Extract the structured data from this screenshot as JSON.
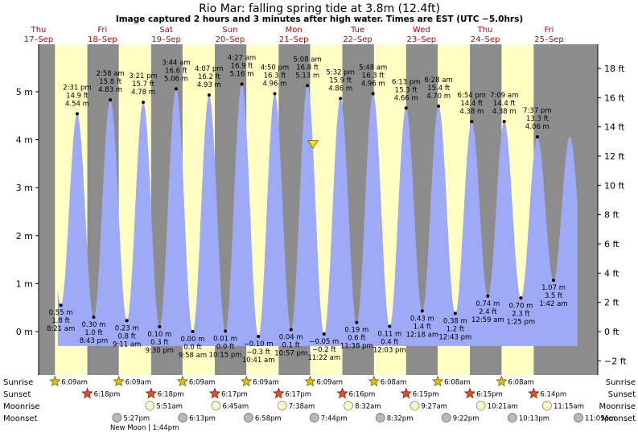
{
  "chart_data": {
    "type": "area",
    "title": "Rio Mar: falling  spring tide at 3.8m (12.4ft)",
    "subtitle": "Image captured 2 hours and 3 minutes after high water. Times are EST (UTC −5.0hrs)",
    "days": [
      {
        "name": "Thu",
        "date": "17–Sep"
      },
      {
        "name": "Fri",
        "date": "18–Sep"
      },
      {
        "name": "Sat",
        "date": "19–Sep"
      },
      {
        "name": "Sun",
        "date": "20–Sep"
      },
      {
        "name": "Mon",
        "date": "21–Sep"
      },
      {
        "name": "Tue",
        "date": "22–Sep"
      },
      {
        "name": "Wed",
        "date": "23–Sep"
      },
      {
        "name": "Thu",
        "date": "24–Sep"
      },
      {
        "name": "Fri",
        "date": "25–Sep"
      }
    ],
    "y_left": {
      "ticks": [
        0,
        1,
        2,
        3,
        4,
        5
      ],
      "labels": [
        "0 m",
        "1 m",
        "2 m",
        "3 m",
        "4 m",
        "5 m"
      ],
      "ylim": [
        -0.95,
        5.85
      ]
    },
    "y_right": {
      "ticks": [
        -2,
        0,
        2,
        4,
        6,
        8,
        10,
        12,
        14,
        16,
        18
      ],
      "labels": [
        "−2 ft",
        "0 ft",
        "2 ft",
        "4 ft",
        "6 ft",
        "8 ft",
        "10 ft",
        "12 ft",
        "14 ft",
        "16 ft",
        "18 ft"
      ]
    },
    "x_range_days": [
      0,
      9
    ],
    "tides": [
      {
        "time": "8:21 am",
        "t": 0.348,
        "m": 0.55,
        "m_label": "0.55 m",
        "ft_label": "1.8 ft",
        "kind": "low"
      },
      {
        "time": "2:31 pm",
        "t": 0.605,
        "m": 4.54,
        "m_label": "4.54 m",
        "ft_label": "14.9 ft",
        "kind": "high"
      },
      {
        "time": "8:43 pm",
        "t": 0.863,
        "m": 0.3,
        "m_label": "0.30 m",
        "ft_label": "1.0 ft",
        "kind": "low"
      },
      {
        "time": "2:58 am",
        "t": 1.124,
        "m": 4.83,
        "m_label": "4.83 m",
        "ft_label": "15.8 ft",
        "kind": "high"
      },
      {
        "time": "9:11 am",
        "t": 1.383,
        "m": 0.23,
        "m_label": "0.23 m",
        "ft_label": "0.8 ft",
        "kind": "low"
      },
      {
        "time": "3:21 pm",
        "t": 1.64,
        "m": 4.78,
        "m_label": "4.78 m",
        "ft_label": "15.7 ft",
        "kind": "high"
      },
      {
        "time": "9:30 pm",
        "t": 1.896,
        "m": 0.1,
        "m_label": "0.10 m",
        "ft_label": "0.3 ft",
        "kind": "low"
      },
      {
        "time": "3:44 am",
        "t": 2.156,
        "m": 5.06,
        "m_label": "5.06 m",
        "ft_label": "16.6 ft",
        "kind": "high"
      },
      {
        "time": "9:58 am",
        "t": 2.415,
        "m": 0.0,
        "m_label": "0.00 m",
        "ft_label": "0.0 ft",
        "kind": "low"
      },
      {
        "time": "4:07 pm",
        "t": 2.672,
        "m": 4.93,
        "m_label": "4.93 m",
        "ft_label": "16.2 ft",
        "kind": "high"
      },
      {
        "time": "10:15 pm",
        "t": 2.927,
        "m": 0.01,
        "m_label": "0.01 m",
        "ft_label": "0.0 ft",
        "kind": "low"
      },
      {
        "time": "4:27 am",
        "t": 3.185,
        "m": 5.16,
        "m_label": "5.16 m",
        "ft_label": "16.9 ft",
        "kind": "high"
      },
      {
        "time": "10:41 am",
        "t": 3.445,
        "m": -0.1,
        "m_label": "−0.10 m",
        "ft_label": "−0.3 ft",
        "kind": "low"
      },
      {
        "time": "4:50 pm",
        "t": 3.701,
        "m": 4.96,
        "m_label": "4.96 m",
        "ft_label": "16.3 ft",
        "kind": "high"
      },
      {
        "time": "10:57 pm",
        "t": 3.956,
        "m": 0.04,
        "m_label": "0.04 m",
        "ft_label": "0.1 ft",
        "kind": "low"
      },
      {
        "time": "5:08 am",
        "t": 4.214,
        "m": 5.13,
        "m_label": "5.13 m",
        "ft_label": "16.8 ft",
        "kind": "high"
      },
      {
        "time": "11:22 am",
        "t": 4.474,
        "m": -0.05,
        "m_label": "−0.05 m",
        "ft_label": "−0.2 ft",
        "kind": "low"
      },
      {
        "time": "5:32 pm",
        "t": 4.731,
        "m": 4.86,
        "m_label": "4.86 m",
        "ft_label": "15.9 ft",
        "kind": "high"
      },
      {
        "time": "11:38 pm",
        "t": 4.985,
        "m": 0.19,
        "m_label": "0.19 m",
        "ft_label": "0.6 ft",
        "kind": "low"
      },
      {
        "time": "5:48 am",
        "t": 5.242,
        "m": 4.96,
        "m_label": "4.96 m",
        "ft_label": "16.3 ft",
        "kind": "high"
      },
      {
        "time": "12:03 pm",
        "t": 5.502,
        "m": 0.11,
        "m_label": "0.11 m",
        "ft_label": "0.4 ft",
        "kind": "low"
      },
      {
        "time": "6:13 pm",
        "t": 5.759,
        "m": 4.66,
        "m_label": "4.66 m",
        "ft_label": "15.3 ft",
        "kind": "high"
      },
      {
        "time": "12:18 am",
        "t": 6.013,
        "m": 0.43,
        "m_label": "0.43 m",
        "ft_label": "1.4 ft",
        "kind": "low"
      },
      {
        "time": "6:28 am",
        "t": 6.269,
        "m": 4.7,
        "m_label": "4.70 m",
        "ft_label": "15.4 ft",
        "kind": "high"
      },
      {
        "time": "12:43 pm",
        "t": 6.53,
        "m": 0.38,
        "m_label": "0.38 m",
        "ft_label": "1.2 ft",
        "kind": "low"
      },
      {
        "time": "6:54 pm",
        "t": 6.788,
        "m": 4.38,
        "m_label": "4.38 m",
        "ft_label": "14.4 ft",
        "kind": "high"
      },
      {
        "time": "12:59 am",
        "t": 7.041,
        "m": 0.74,
        "m_label": "0.74 m",
        "ft_label": "2.4 ft",
        "kind": "low"
      },
      {
        "time": "7:09 am",
        "t": 7.298,
        "m": 4.38,
        "m_label": "4.38 m",
        "ft_label": "14.4 ft",
        "kind": "high"
      },
      {
        "time": "1:25 pm",
        "t": 7.559,
        "m": 0.7,
        "m_label": "0.70 m",
        "ft_label": "2.3 ft",
        "kind": "low"
      },
      {
        "time": "7:37 pm",
        "t": 7.817,
        "m": 4.06,
        "m_label": "4.06 m",
        "ft_label": "13.3 ft",
        "kind": "high"
      },
      {
        "time": "1:42 am",
        "t": 8.071,
        "m": 1.07,
        "m_label": "1.07 m",
        "ft_label": "3.5 ft",
        "kind": "low"
      }
    ],
    "current": {
      "t": 4.3,
      "m": 3.8
    },
    "rows": {
      "sunrise": {
        "label": "Sunrise",
        "events": [
          {
            "t": 0.256,
            "text": "6:09am"
          },
          {
            "t": 1.256,
            "text": "6:09am"
          },
          {
            "t": 2.256,
            "text": "6:09am"
          },
          {
            "t": 3.256,
            "text": "6:09am"
          },
          {
            "t": 4.256,
            "text": "6:09am"
          },
          {
            "t": 5.256,
            "text": "6:08am"
          },
          {
            "t": 6.256,
            "text": "6:08am"
          },
          {
            "t": 7.256,
            "text": "6:08am"
          }
        ]
      },
      "sunset": {
        "label": "Sunset",
        "events": [
          {
            "t": 0.763,
            "text": "6:18pm"
          },
          {
            "t": 1.763,
            "text": "6:18pm"
          },
          {
            "t": 2.762,
            "text": "6:17pm"
          },
          {
            "t": 3.762,
            "text": "6:17pm"
          },
          {
            "t": 4.761,
            "text": "6:16pm"
          },
          {
            "t": 5.76,
            "text": "6:15pm"
          },
          {
            "t": 6.76,
            "text": "6:15pm"
          },
          {
            "t": 7.76,
            "text": "6:14pm"
          }
        ]
      },
      "moonrise": {
        "label": "Moonrise",
        "events": [
          {
            "t": 1.744,
            "text": "5:51am"
          },
          {
            "t": 2.781,
            "text": "6:45am"
          },
          {
            "t": 3.818,
            "text": "7:38am"
          },
          {
            "t": 4.856,
            "text": "8:32am"
          },
          {
            "t": 5.894,
            "text": "9:27am"
          },
          {
            "t": 6.932,
            "text": "10:21am"
          },
          {
            "t": 7.969,
            "text": "11:15am"
          }
        ]
      },
      "moonset": {
        "label": "Moonset",
        "events": [
          {
            "t": 1.228,
            "text": "5:27pm"
          },
          {
            "t": 2.259,
            "text": "6:13pm"
          },
          {
            "t": 3.29,
            "text": "6:58pm"
          },
          {
            "t": 4.322,
            "text": "7:44pm"
          },
          {
            "t": 5.356,
            "text": "8:32pm"
          },
          {
            "t": 6.39,
            "text": "9:22pm"
          },
          {
            "t": 7.426,
            "text": "10:13pm"
          },
          {
            "t": 8.462,
            "text": "11:05pm"
          }
        ]
      }
    },
    "moon_phase": {
      "text": "New Moon | 1:44pm"
    }
  }
}
